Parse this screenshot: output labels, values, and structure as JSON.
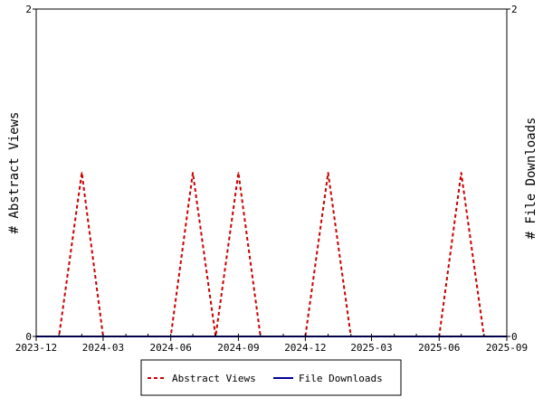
{
  "chart_data": {
    "type": "line",
    "title": "",
    "ylabel": "# Abstract Views",
    "ylabel_right": "# File Downloads",
    "xlabel": "",
    "ylim": [
      0,
      2
    ],
    "y_ticks": [
      "0",
      "2"
    ],
    "x_range": [
      "2023-12-01",
      "2025-09-01"
    ],
    "x_tick_labels": [
      {
        "date": "2023-12-01",
        "label": "2023-12"
      },
      {
        "date": "2024-03-01",
        "label": "2024-03"
      },
      {
        "date": "2024-06-01",
        "label": "2024-06"
      },
      {
        "date": "2024-09-01",
        "label": "2024-09"
      },
      {
        "date": "2024-12-01",
        "label": "2024-12"
      },
      {
        "date": "2025-03-01",
        "label": "2025-03"
      },
      {
        "date": "2025-06-01",
        "label": "2025-06"
      },
      {
        "date": "2025-09-01",
        "label": "2025-09"
      }
    ],
    "legend_position": "bottom",
    "grid": false,
    "series": [
      {
        "name": "Abstract Views",
        "color": "#cc0000",
        "style": "dashed",
        "x": [
          "2023-12-01",
          "2024-01-01",
          "2024-02-01",
          "2024-03-01",
          "2024-04-01",
          "2024-05-01",
          "2024-06-01",
          "2024-07-01",
          "2024-08-01",
          "2024-09-01",
          "2024-10-01",
          "2024-11-01",
          "2024-12-01",
          "2025-01-01",
          "2025-02-01",
          "2025-03-01",
          "2025-04-01",
          "2025-05-01",
          "2025-06-01",
          "2025-07-01",
          "2025-08-01",
          "2025-09-01"
        ],
        "values": [
          0,
          0,
          1,
          0,
          0,
          0,
          0,
          1,
          0,
          1,
          0,
          0,
          0,
          1,
          0,
          0,
          0,
          0,
          0,
          1,
          0,
          0
        ]
      },
      {
        "name": "File Downloads",
        "color": "#000099",
        "style": "solid",
        "x": [
          "2023-12-01",
          "2024-01-01",
          "2024-02-01",
          "2024-03-01",
          "2024-04-01",
          "2024-05-01",
          "2024-06-01",
          "2024-07-01",
          "2024-08-01",
          "2024-09-01",
          "2024-10-01",
          "2024-11-01",
          "2024-12-01",
          "2025-01-01",
          "2025-02-01",
          "2025-03-01",
          "2025-04-01",
          "2025-05-01",
          "2025-06-01",
          "2025-07-01",
          "2025-08-01",
          "2025-09-01"
        ],
        "values": [
          0,
          0,
          0,
          0,
          0,
          0,
          0,
          0,
          0,
          0,
          0,
          0,
          0,
          0,
          0,
          0,
          0,
          0,
          0,
          0,
          0,
          0
        ]
      }
    ]
  }
}
